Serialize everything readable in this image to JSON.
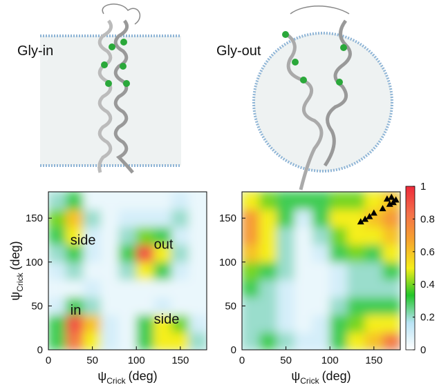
{
  "panels": [
    {
      "label": "Gly-in"
    },
    {
      "label": "Gly-out"
    }
  ],
  "chart_data": [
    {
      "type": "heatmap",
      "x_bins": [
        0,
        20,
        40,
        60,
        80,
        100,
        120,
        140,
        160,
        180
      ],
      "y_bins": [
        0,
        20,
        40,
        60,
        80,
        100,
        120,
        140,
        160,
        180
      ],
      "values": [
        [
          0.3,
          0.8,
          0.5,
          0.1,
          0.05,
          0.3,
          0.5,
          0.5,
          0.2
        ],
        [
          0.3,
          0.9,
          0.6,
          0.1,
          0.05,
          0.3,
          0.5,
          0.4,
          0.1
        ],
        [
          0.1,
          0.3,
          0.2,
          0.05,
          0.05,
          0.05,
          0.1,
          0.05,
          0.05
        ],
        [
          0.05,
          0.05,
          0.1,
          0.05,
          0.05,
          0.05,
          0.05,
          0.05,
          0.05
        ],
        [
          0.1,
          0.2,
          0.05,
          0.05,
          0.2,
          0.5,
          0.3,
          0.1,
          0.05
        ],
        [
          0.2,
          0.3,
          0.1,
          0.05,
          0.3,
          0.9,
          0.5,
          0.2,
          0.05
        ],
        [
          0.3,
          0.5,
          0.1,
          0.05,
          0.2,
          0.4,
          0.3,
          0.1,
          0.05
        ],
        [
          0.4,
          0.6,
          0.2,
          0.05,
          0.1,
          0.1,
          0.1,
          0.2,
          0.05
        ],
        [
          0.2,
          0.3,
          0.05,
          0.05,
          0.05,
          0.05,
          0.05,
          0.1,
          0.05
        ]
      ],
      "xlim": [
        0,
        180
      ],
      "ylim": [
        0,
        180
      ],
      "xticks": [
        0,
        50,
        100,
        150
      ],
      "yticks": [
        0,
        50,
        100,
        150
      ],
      "xlabel": {
        "symbol": "ψ",
        "subscript": "Crick",
        "unit": "(deg)"
      },
      "ylabel": {
        "symbol": "ψ",
        "subscript": "Crick",
        "unit": "(deg)"
      },
      "annotations": [
        "side",
        "out",
        "in",
        "side"
      ]
    },
    {
      "type": "heatmap",
      "x_bins": [
        0,
        20,
        40,
        60,
        80,
        100,
        120,
        140,
        160,
        180
      ],
      "y_bins": [
        0,
        20,
        40,
        60,
        80,
        100,
        120,
        140,
        160,
        180
      ],
      "values": [
        [
          0.2,
          0.3,
          0.2,
          0.1,
          0.1,
          0.3,
          0.5,
          0.6,
          0.8
        ],
        [
          0.2,
          0.2,
          0.1,
          0.05,
          0.1,
          0.3,
          0.4,
          0.5,
          0.5
        ],
        [
          0.2,
          0.2,
          0.1,
          0.05,
          0.05,
          0.2,
          0.3,
          0.3,
          0.3
        ],
        [
          0.3,
          0.2,
          0.1,
          0.05,
          0.05,
          0.1,
          0.2,
          0.2,
          0.2
        ],
        [
          0.4,
          0.3,
          0.2,
          0.05,
          0.05,
          0.1,
          0.2,
          0.2,
          0.3
        ],
        [
          0.6,
          0.5,
          0.2,
          0.05,
          0.1,
          0.3,
          0.4,
          0.3,
          0.5
        ],
        [
          0.7,
          0.5,
          0.2,
          0.05,
          0.2,
          0.4,
          0.5,
          0.5,
          0.6
        ],
        [
          0.7,
          0.5,
          0.3,
          0.1,
          0.3,
          0.5,
          0.5,
          0.6,
          0.7
        ],
        [
          0.5,
          0.4,
          0.3,
          0.3,
          0.3,
          0.4,
          0.4,
          0.5,
          0.6
        ]
      ],
      "xlim": [
        0,
        180
      ],
      "ylim": [
        0,
        180
      ],
      "xticks": [
        0,
        50,
        100,
        150
      ],
      "yticks": [
        0,
        50,
        100,
        150
      ],
      "xlabel": {
        "symbol": "ψ",
        "subscript": "Crick",
        "unit": "(deg)"
      },
      "points": {
        "color": "#000000",
        "x": [
          165,
          170,
          175,
          168,
          172,
          150,
          145,
          140,
          135,
          160
        ],
        "y": [
          172,
          174,
          171,
          166,
          168,
          156,
          152,
          149,
          146,
          161
        ]
      },
      "colorbar": {
        "lim": [
          0,
          1
        ],
        "ticks": [
          0,
          0.2,
          0.4,
          0.6,
          0.8,
          1
        ],
        "colors": [
          "#ffffff",
          "#b8e3f5",
          "#22c62a",
          "#f5ee1a",
          "#f6a52e",
          "#f4704a",
          "#ee2a3a"
        ]
      }
    }
  ]
}
